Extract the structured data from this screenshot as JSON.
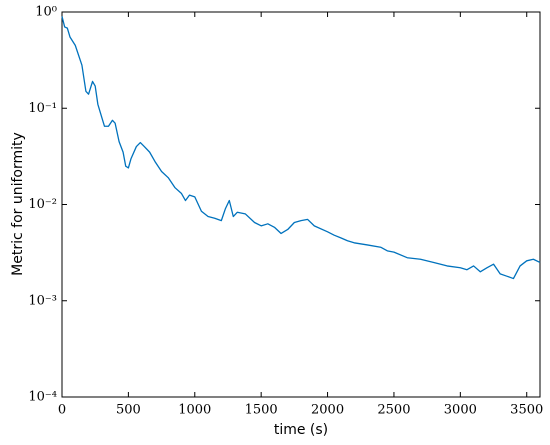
{
  "chart_data": {
    "type": "line",
    "xlabel": "time (s)",
    "ylabel": "Metric for uniformity",
    "xlim": [
      0,
      3600
    ],
    "xticks": [
      0,
      500,
      1000,
      1500,
      2000,
      2500,
      3000,
      3500
    ],
    "ylim": [
      0.0001,
      1
    ],
    "ylog": true,
    "yticks": [
      {
        "value": 0.0001,
        "label": "10⁻⁴"
      },
      {
        "value": 0.001,
        "label": "10⁻³"
      },
      {
        "value": 0.01,
        "label": "10⁻²"
      },
      {
        "value": 0.1,
        "label": "10⁻¹"
      },
      {
        "value": 1,
        "label": "10⁰"
      }
    ],
    "x": [
      0,
      20,
      40,
      60,
      100,
      150,
      180,
      200,
      230,
      250,
      270,
      300,
      320,
      350,
      380,
      400,
      430,
      460,
      480,
      500,
      520,
      560,
      590,
      620,
      660,
      700,
      750,
      800,
      850,
      900,
      930,
      960,
      1000,
      1050,
      1100,
      1150,
      1200,
      1230,
      1260,
      1290,
      1320,
      1380,
      1450,
      1500,
      1550,
      1600,
      1650,
      1700,
      1750,
      1800,
      1850,
      1900,
      2000,
      2050,
      2100,
      2150,
      2200,
      2300,
      2400,
      2450,
      2500,
      2600,
      2700,
      2800,
      2900,
      3000,
      3050,
      3100,
      3150,
      3200,
      3250,
      3300,
      3350,
      3400,
      3450,
      3500,
      3550,
      3600
    ],
    "series": [
      {
        "color": "#0072bd",
        "values": [
          0.9,
          0.7,
          0.68,
          0.55,
          0.45,
          0.28,
          0.15,
          0.14,
          0.19,
          0.17,
          0.11,
          0.08,
          0.065,
          0.065,
          0.075,
          0.07,
          0.045,
          0.035,
          0.025,
          0.024,
          0.03,
          0.04,
          0.044,
          0.04,
          0.035,
          0.028,
          0.022,
          0.019,
          0.015,
          0.013,
          0.011,
          0.0125,
          0.012,
          0.0085,
          0.0075,
          0.0072,
          0.0068,
          0.009,
          0.011,
          0.0075,
          0.0083,
          0.008,
          0.0065,
          0.006,
          0.0063,
          0.0058,
          0.005,
          0.0055,
          0.0065,
          0.0068,
          0.007,
          0.006,
          0.0052,
          0.0048,
          0.0045,
          0.0042,
          0.004,
          0.0038,
          0.0036,
          0.0033,
          0.0032,
          0.0028,
          0.0027,
          0.0025,
          0.0023,
          0.0022,
          0.0021,
          0.0023,
          0.002,
          0.0022,
          0.0024,
          0.0019,
          0.0018,
          0.0017,
          0.0023,
          0.0026,
          0.0027,
          0.0025
        ]
      }
    ]
  }
}
